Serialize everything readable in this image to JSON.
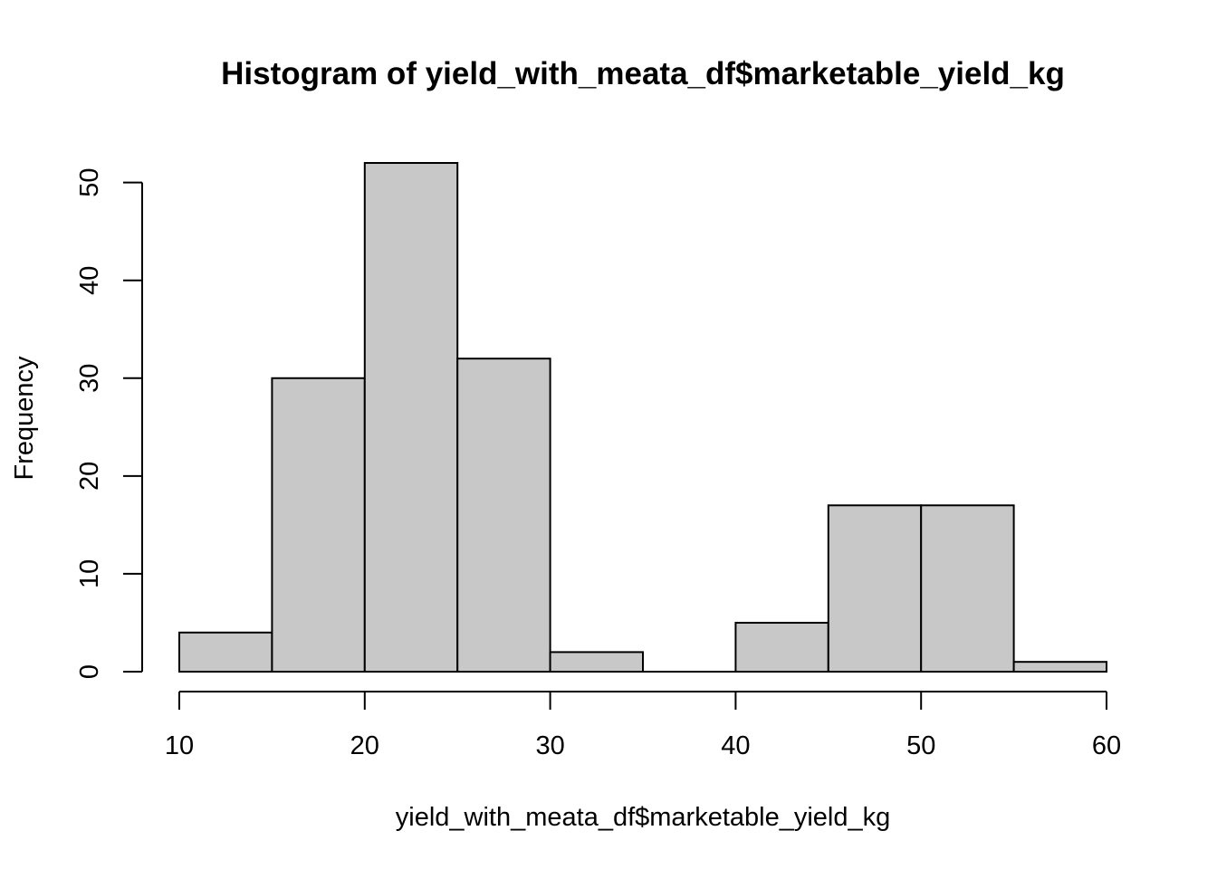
{
  "chart_data": {
    "type": "bar",
    "subtype": "histogram",
    "title": "Histogram of yield_with_meata_df$marketable_yield_kg",
    "xlabel": "yield_with_meata_df$marketable_yield_kg",
    "ylabel": "Frequency",
    "bin_edges": [
      10,
      15,
      20,
      25,
      30,
      35,
      40,
      45,
      50,
      55,
      60
    ],
    "values": [
      4,
      30,
      52,
      32,
      2,
      0,
      5,
      17,
      17,
      1
    ],
    "xlim": [
      10,
      60
    ],
    "ylim": [
      0,
      52
    ],
    "x_ticks": [
      10,
      20,
      30,
      40,
      50,
      60
    ],
    "y_ticks": [
      0,
      10,
      20,
      30,
      40,
      50
    ],
    "bar_color": "#c8c8c8",
    "grid": false,
    "legend": "none"
  }
}
